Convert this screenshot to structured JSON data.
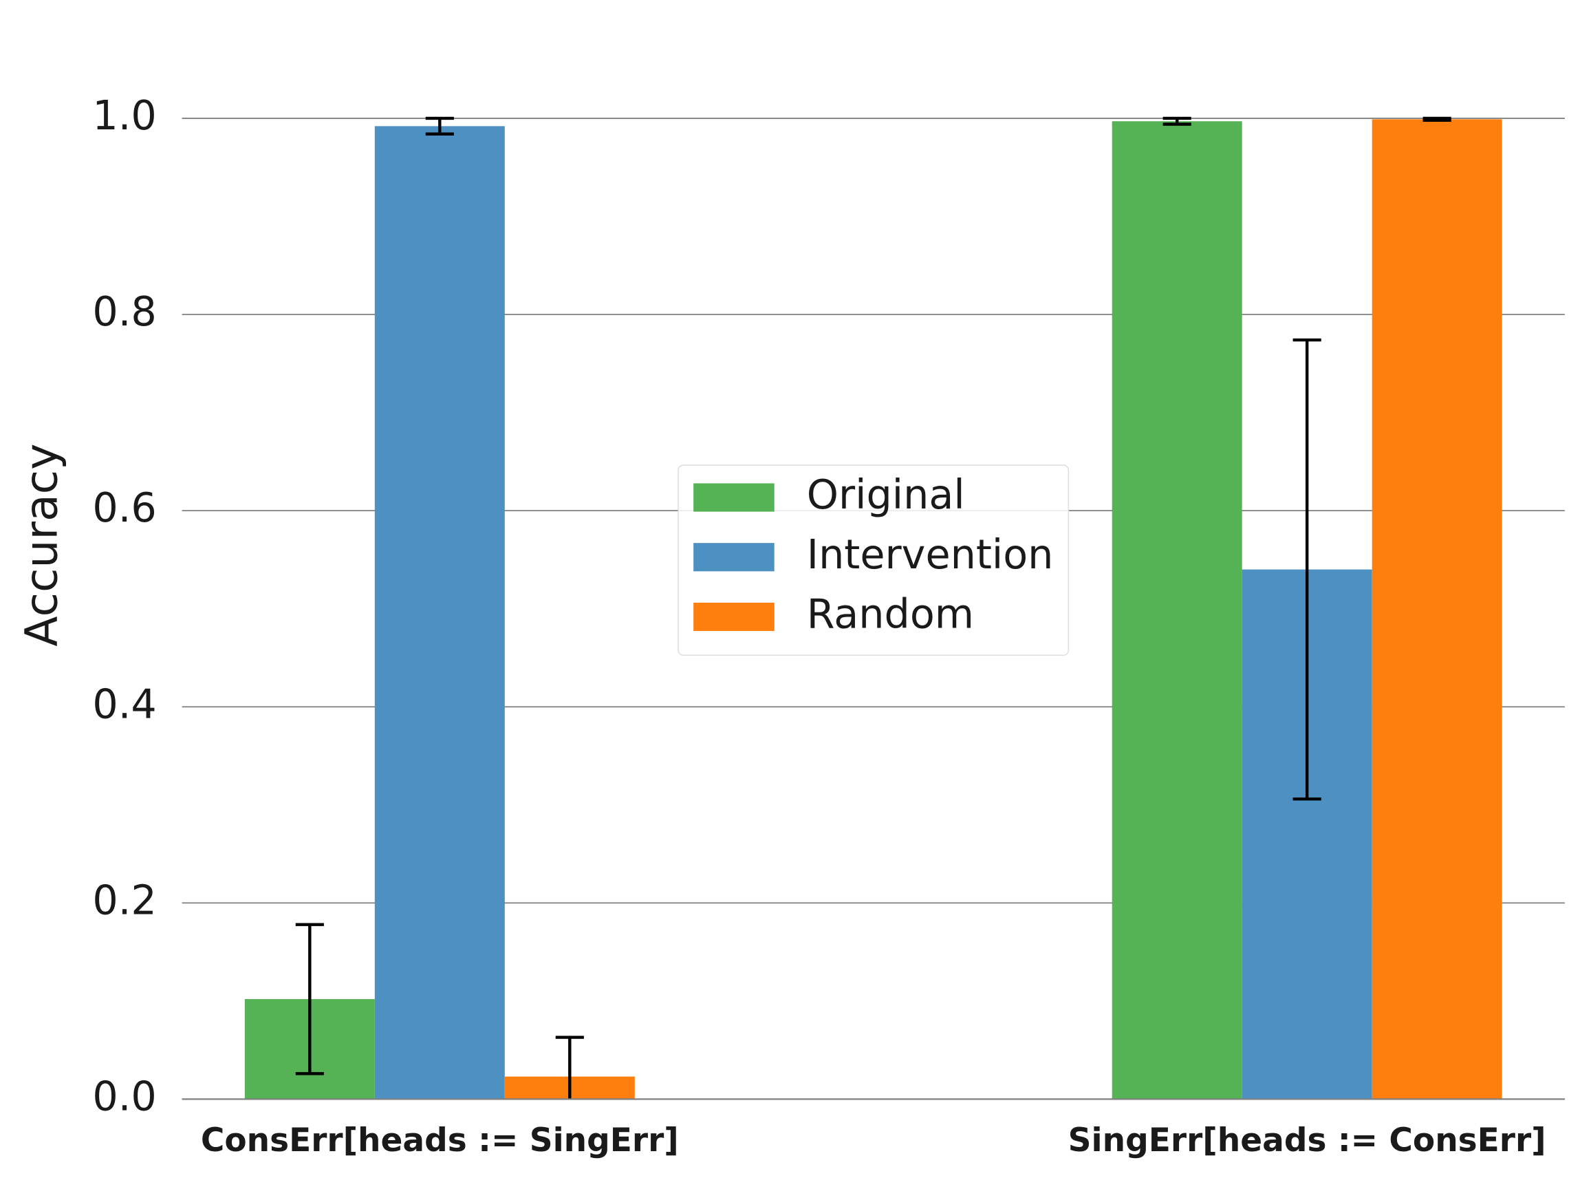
{
  "chart_data": {
    "type": "bar",
    "y_label": "Accuracy",
    "categories": [
      "ConsErr[heads := SingErr]",
      "SingErr[heads := ConsErr]"
    ],
    "series": [
      {
        "name": "Original",
        "color": "#55b255",
        "values": [
          0.102,
          0.997
        ],
        "errors": [
          0.076,
          0.003
        ]
      },
      {
        "name": "Intervention",
        "color": "#4c91c2",
        "values": [
          0.992,
          0.54
        ],
        "errors": [
          0.008,
          0.234
        ]
      },
      {
        "name": "Random",
        "color": "#ff7f0e",
        "values": [
          0.023,
          0.999
        ],
        "errors": [
          0.04,
          0.001
        ]
      }
    ],
    "ylim": [
      0,
      1.05
    ],
    "yticks": [
      {
        "value": 0,
        "label": "0.0"
      },
      {
        "value": 0.2,
        "label": "0.2"
      },
      {
        "value": 0.4,
        "label": "0.4"
      },
      {
        "value": 0.6,
        "label": "0.6"
      },
      {
        "value": 0.8,
        "label": "0.8"
      },
      {
        "value": 1,
        "label": "1.0"
      }
    ],
    "grid": true,
    "legend": "center"
  }
}
